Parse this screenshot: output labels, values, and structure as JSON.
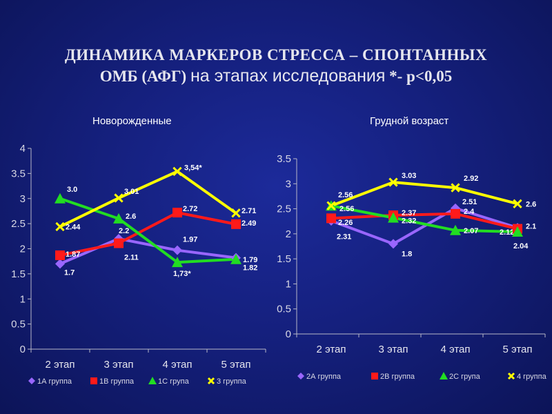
{
  "title": {
    "line1": "ДИНАМИКА МАРКЕРОВ СТРЕССА – СПОНТАННЫХ",
    "line2_a": "ОМБ (АФГ)",
    "line2_b": "на этапах исследования",
    "line2_c": "*- р<0,05"
  },
  "chart_data": [
    {
      "type": "line",
      "title": "Новорожденные",
      "categories": [
        "2 этап",
        "3 этап",
        "4 этап",
        "5 этап"
      ],
      "ylim": [
        0,
        4
      ],
      "yticks": [
        "0",
        "0.5",
        "1",
        "1.5",
        "2",
        "2.5",
        "3",
        "3.5",
        "4"
      ],
      "grid": false,
      "legend": "bottom",
      "series": [
        {
          "name": "1А группа",
          "values": [
            1.7,
            2.2,
            1.97,
            1.82
          ],
          "labels": [
            "1.7",
            "2.2",
            "1.97",
            "1.82"
          ],
          "color": "#9966ff",
          "marker": "diamond"
        },
        {
          "name": "1В группа",
          "values": [
            1.87,
            2.11,
            2.72,
            2.49
          ],
          "labels": [
            "1.87",
            "2.11",
            "2.72",
            "2.49"
          ],
          "color": "#ff1a1a",
          "marker": "square"
        },
        {
          "name": "1С група",
          "values": [
            3.0,
            2.6,
            1.73,
            1.79
          ],
          "labels": [
            "3.0",
            "2.6",
            "1,73*",
            "1.79"
          ],
          "color": "#22dd22",
          "marker": "triangle"
        },
        {
          "name": "3 группа",
          "values": [
            2.44,
            3.01,
            3.54,
            2.71
          ],
          "labels": [
            "2.44",
            "3.01",
            "3,54*",
            "2.71"
          ],
          "color": "#ffff00",
          "marker": "x"
        }
      ]
    },
    {
      "type": "line",
      "title": "Грудной возраст",
      "categories": [
        "2 этап",
        "3 этап",
        "4 этап",
        "5 этап"
      ],
      "ylim": [
        0,
        3.5
      ],
      "yticks": [
        "0",
        "0.5",
        "1",
        "1.5",
        "2",
        "2.5",
        "3",
        "3.5"
      ],
      "grid": false,
      "legend": "bottom",
      "series": [
        {
          "name": "2А группа",
          "values": [
            2.26,
            1.8,
            2.51,
            2.12
          ],
          "labels": [
            "2.26",
            "1.8",
            "2.51",
            "2.12"
          ],
          "color": "#9966ff",
          "marker": "diamond"
        },
        {
          "name": "2В группа",
          "values": [
            2.31,
            2.37,
            2.4,
            2.1
          ],
          "labels": [
            "2.31",
            "2.37",
            "2.4",
            "2.1"
          ],
          "color": "#ff1a1a",
          "marker": "square"
        },
        {
          "name": "2С група",
          "values": [
            2.56,
            2.32,
            2.07,
            2.04
          ],
          "labels": [
            "2.56",
            "2.32",
            "2.07",
            "2.04"
          ],
          "color": "#22dd22",
          "marker": "triangle"
        },
        {
          "name": "4 группа",
          "values": [
            2.56,
            3.03,
            2.92,
            2.6
          ],
          "labels": [
            "2.56",
            "3.03",
            "2.92",
            "2.6"
          ],
          "color": "#ffff00",
          "marker": "x"
        }
      ]
    }
  ]
}
